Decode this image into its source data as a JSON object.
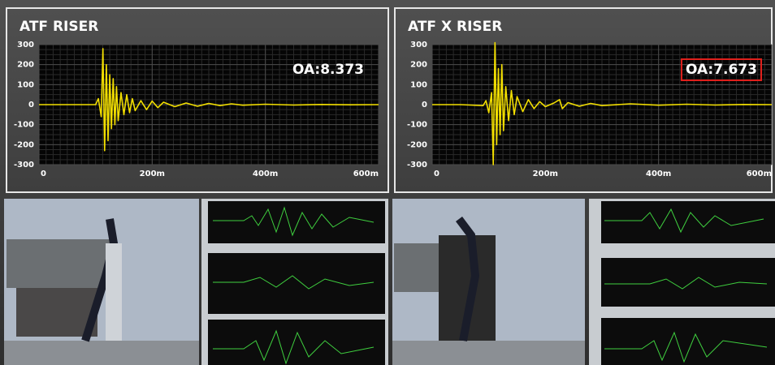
{
  "chart_data": [
    {
      "type": "line",
      "title": "ATF RISER",
      "annotation": "OA:8.373",
      "color": "#f2de00",
      "x": [
        0,
        50,
        100,
        105,
        110,
        113,
        116,
        119,
        122,
        125,
        128,
        131,
        134,
        137,
        140,
        145,
        150,
        155,
        160,
        165,
        170,
        180,
        190,
        200,
        210,
        220,
        240,
        260,
        280,
        300,
        320,
        340,
        360,
        400,
        450,
        500,
        550,
        600
      ],
      "values": [
        0,
        0,
        0,
        30,
        -60,
        280,
        -230,
        200,
        -180,
        150,
        -120,
        130,
        -100,
        90,
        -80,
        60,
        -50,
        50,
        -40,
        30,
        -30,
        20,
        -25,
        18,
        -15,
        12,
        -10,
        8,
        -8,
        6,
        -5,
        4,
        -3,
        2,
        -2,
        1,
        -1,
        0
      ],
      "xlim": [
        0,
        600
      ],
      "xticks": [
        0,
        {
          "value": 200,
          "label": "200m"
        },
        {
          "value": 400,
          "label": "400m"
        },
        {
          "value": 600,
          "label": "600m"
        }
      ],
      "ylim": [
        -300,
        300
      ],
      "yticks": [
        -300,
        -200,
        -100,
        0,
        100,
        200,
        300
      ],
      "grid": true
    },
    {
      "type": "line",
      "title": "ATF X RISER",
      "annotation": "OA:7.673",
      "annotation_border": "#e0201c",
      "color": "#f2de00",
      "x": [
        0,
        50,
        90,
        95,
        100,
        105,
        108,
        111,
        114,
        117,
        120,
        123,
        126,
        130,
        135,
        140,
        145,
        150,
        160,
        170,
        180,
        190,
        200,
        215,
        225,
        230,
        240,
        260,
        280,
        300,
        350,
        400,
        450,
        500,
        550,
        600
      ],
      "values": [
        0,
        0,
        -5,
        20,
        -40,
        60,
        -300,
        310,
        -200,
        180,
        -150,
        200,
        -130,
        90,
        -80,
        70,
        -50,
        40,
        -35,
        25,
        -20,
        15,
        -10,
        8,
        25,
        -20,
        10,
        -8,
        6,
        -5,
        4,
        -3,
        2,
        -2,
        1,
        0
      ],
      "xlim": [
        0,
        600
      ],
      "xticks": [
        0,
        {
          "value": 200,
          "label": "200m"
        },
        {
          "value": 400,
          "label": "400m"
        },
        {
          "value": 600,
          "label": "600m"
        }
      ],
      "ylim": [
        -300,
        300
      ],
      "yticks": [
        -300,
        -200,
        -100,
        0,
        100,
        200,
        300
      ],
      "grid": true
    }
  ]
}
